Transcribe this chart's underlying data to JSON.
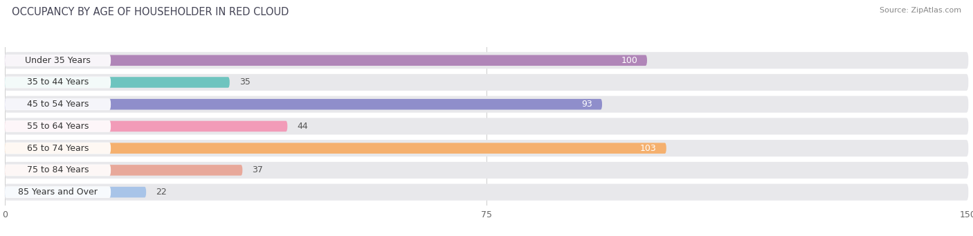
{
  "title": "OCCUPANCY BY AGE OF HOUSEHOLDER IN RED CLOUD",
  "source": "Source: ZipAtlas.com",
  "categories": [
    "Under 35 Years",
    "35 to 44 Years",
    "45 to 54 Years",
    "55 to 64 Years",
    "65 to 74 Years",
    "75 to 84 Years",
    "85 Years and Over"
  ],
  "values": [
    100,
    35,
    93,
    44,
    103,
    37,
    22
  ],
  "bar_colors": [
    "#b085b8",
    "#6ec4bf",
    "#8f8ecb",
    "#f29bb8",
    "#f5b06e",
    "#e8a89a",
    "#a8c4e8"
  ],
  "xlim": [
    0,
    150
  ],
  "xticks": [
    0,
    75,
    150
  ],
  "background_color": "#ffffff",
  "row_bg_color": "#e8e8eb",
  "label_fontsize": 9,
  "title_fontsize": 10.5,
  "value_label_inside_threshold": 60
}
